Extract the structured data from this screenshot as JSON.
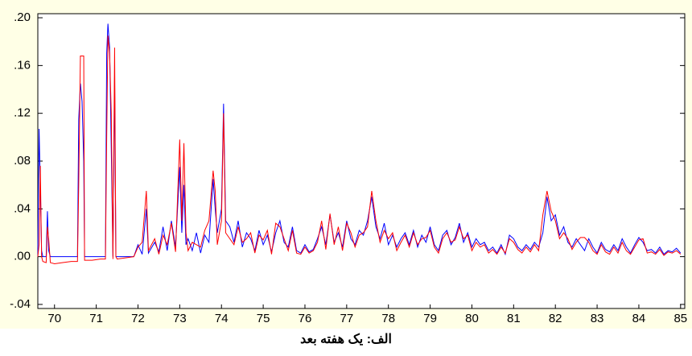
{
  "chart_data": {
    "type": "line",
    "caption": "الف: یک هفته بعد",
    "xlim": [
      69.6,
      85.1
    ],
    "ylim": [
      -0.0434,
      0.2034
    ],
    "xticks": [
      70,
      71,
      72,
      73,
      74,
      75,
      76,
      77,
      78,
      79,
      80,
      81,
      82,
      83,
      84,
      85
    ],
    "yticks": [
      {
        "value": -0.04,
        "label": "-.04"
      },
      {
        "value": 0,
        "label": ".00"
      },
      {
        "value": 0.04,
        "label": ".04"
      },
      {
        "value": 0.08,
        "label": ".08"
      },
      {
        "value": 0.12,
        "label": ".12"
      },
      {
        "value": 0.16,
        "label": ".16"
      },
      {
        "value": 0.2,
        "label": ".20"
      }
    ],
    "x": [
      69.6,
      69.63,
      69.66,
      69.69,
      69.72,
      69.8,
      69.83,
      69.86,
      69.9,
      70.0,
      70.2,
      70.4,
      70.55,
      70.58,
      70.62,
      70.66,
      70.7,
      70.72,
      70.9,
      71.1,
      71.22,
      71.25,
      71.28,
      71.32,
      71.36,
      71.4,
      71.44,
      71.47,
      71.5,
      71.7,
      71.9,
      72.0,
      72.1,
      72.2,
      72.25,
      72.4,
      72.5,
      72.6,
      72.7,
      72.8,
      72.9,
      73.0,
      73.05,
      73.1,
      73.15,
      73.2,
      73.3,
      73.4,
      73.5,
      73.6,
      73.7,
      73.8,
      73.85,
      73.9,
      74.0,
      74.05,
      74.1,
      74.2,
      74.3,
      74.4,
      74.5,
      74.6,
      74.7,
      74.8,
      74.9,
      75.0,
      75.1,
      75.2,
      75.3,
      75.4,
      75.5,
      75.6,
      75.7,
      75.8,
      75.9,
      76.0,
      76.1,
      76.2,
      76.3,
      76.4,
      76.5,
      76.6,
      76.7,
      76.8,
      76.9,
      77.0,
      77.1,
      77.2,
      77.3,
      77.4,
      77.5,
      77.6,
      77.7,
      77.8,
      77.9,
      78.0,
      78.1,
      78.2,
      78.3,
      78.4,
      78.5,
      78.6,
      78.7,
      78.8,
      78.9,
      79.0,
      79.1,
      79.2,
      79.3,
      79.4,
      79.5,
      79.6,
      79.7,
      79.8,
      79.9,
      80.0,
      80.1,
      80.2,
      80.3,
      80.4,
      80.5,
      80.6,
      80.7,
      80.8,
      80.9,
      81.0,
      81.1,
      81.2,
      81.3,
      81.4,
      81.5,
      81.6,
      81.7,
      81.8,
      81.9,
      82.0,
      82.1,
      82.2,
      82.3,
      82.4,
      82.5,
      82.6,
      82.7,
      82.8,
      82.9,
      83.0,
      83.1,
      83.2,
      83.3,
      83.4,
      83.5,
      83.6,
      83.7,
      83.8,
      83.9,
      84.0,
      84.1,
      84.2,
      84.3,
      84.4,
      84.5,
      84.6,
      84.7,
      84.8,
      84.9,
      85.0
    ],
    "series": [
      {
        "color": "#0000ff",
        "values": [
          0,
          0.107,
          0.06,
          0.005,
          0,
          0,
          0.038,
          0.005,
          0,
          0,
          0,
          0,
          0,
          0.115,
          0.145,
          0.13,
          0.08,
          0,
          0,
          0,
          0,
          0.17,
          0.195,
          0.175,
          0.09,
          0,
          0.15,
          0,
          0,
          0,
          0,
          0.01,
          0.002,
          0.04,
          0.003,
          0.012,
          0.004,
          0.025,
          0.005,
          0.03,
          0.008,
          0.075,
          0.02,
          0.06,
          0.01,
          0.015,
          0.005,
          0.02,
          0.003,
          0.018,
          0.012,
          0.065,
          0.04,
          0.02,
          0.04,
          0.128,
          0.03,
          0.025,
          0.012,
          0.03,
          0.008,
          0.02,
          0.015,
          0.005,
          0.022,
          0.01,
          0.018,
          0.004,
          0.02,
          0.03,
          0.012,
          0.008,
          0.025,
          0.005,
          0.003,
          0.01,
          0.004,
          0.006,
          0.015,
          0.025,
          0.01,
          0.035,
          0.012,
          0.02,
          0.008,
          0.03,
          0.015,
          0.01,
          0.022,
          0.018,
          0.03,
          0.05,
          0.025,
          0.015,
          0.028,
          0.01,
          0.018,
          0.008,
          0.015,
          0.02,
          0.01,
          0.022,
          0.008,
          0.018,
          0.012,
          0.025,
          0.01,
          0.005,
          0.018,
          0.022,
          0.01,
          0.016,
          0.028,
          0.012,
          0.02,
          0.008,
          0.015,
          0.01,
          0.012,
          0.005,
          0.008,
          0.003,
          0.01,
          0.002,
          0.018,
          0.015,
          0.008,
          0.005,
          0.01,
          0.006,
          0.012,
          0.008,
          0.02,
          0.05,
          0.03,
          0.035,
          0.018,
          0.025,
          0.012,
          0.008,
          0.015,
          0.01,
          0.005,
          0.015,
          0.008,
          0.003,
          0.012,
          0.006,
          0.004,
          0.01,
          0.005,
          0.015,
          0.008,
          0.003,
          0.01,
          0.016,
          0.012,
          0.005,
          0.006,
          0.003,
          0.008,
          0.002,
          0.005,
          0.004,
          0.007,
          0.003
        ]
      },
      {
        "color": "#ff0000",
        "values": [
          0,
          0.01,
          0.076,
          0,
          -0.004,
          -0.005,
          0.025,
          0.015,
          -0.005,
          -0.006,
          -0.005,
          -0.004,
          -0.004,
          0.06,
          0.168,
          0.168,
          0.168,
          -0.003,
          -0.003,
          -0.002,
          -0.002,
          0.1,
          0.185,
          0.17,
          0.12,
          -0.002,
          0.175,
          0,
          -0.002,
          -0.001,
          0,
          0.008,
          0.012,
          0.055,
          0.005,
          0.015,
          0.002,
          0.018,
          0.01,
          0.028,
          0.004,
          0.098,
          0.03,
          0.095,
          0.02,
          0.005,
          0.012,
          0.01,
          0.008,
          0.022,
          0.03,
          0.072,
          0.055,
          0.01,
          0.03,
          0.12,
          0.02,
          0.015,
          0.01,
          0.025,
          0.012,
          0.015,
          0.02,
          0.003,
          0.018,
          0.014,
          0.022,
          0.002,
          0.028,
          0.025,
          0.015,
          0.005,
          0.022,
          0.003,
          0.002,
          0.008,
          0.003,
          0.005,
          0.012,
          0.03,
          0.006,
          0.036,
          0.01,
          0.025,
          0.005,
          0.028,
          0.02,
          0.008,
          0.018,
          0.02,
          0.025,
          0.055,
          0.03,
          0.012,
          0.022,
          0.015,
          0.02,
          0.005,
          0.012,
          0.018,
          0.008,
          0.02,
          0.01,
          0.015,
          0.016,
          0.022,
          0.008,
          0.003,
          0.015,
          0.02,
          0.012,
          0.014,
          0.025,
          0.015,
          0.018,
          0.005,
          0.012,
          0.008,
          0.01,
          0.003,
          0.006,
          0.002,
          0.008,
          0.003,
          0.015,
          0.012,
          0.006,
          0.003,
          0.008,
          0.004,
          0.01,
          0.005,
          0.035,
          0.055,
          0.038,
          0.03,
          0.015,
          0.02,
          0.015,
          0.006,
          0.012,
          0.016,
          0.016,
          0.012,
          0.005,
          0.002,
          0.01,
          0.004,
          0.002,
          0.008,
          0.003,
          0.012,
          0.005,
          0.002,
          0.008,
          0.014,
          0.015,
          0.003,
          0.004,
          0.002,
          0.006,
          0.001,
          0.004,
          0.003,
          0.005,
          0.002
        ]
      }
    ]
  }
}
